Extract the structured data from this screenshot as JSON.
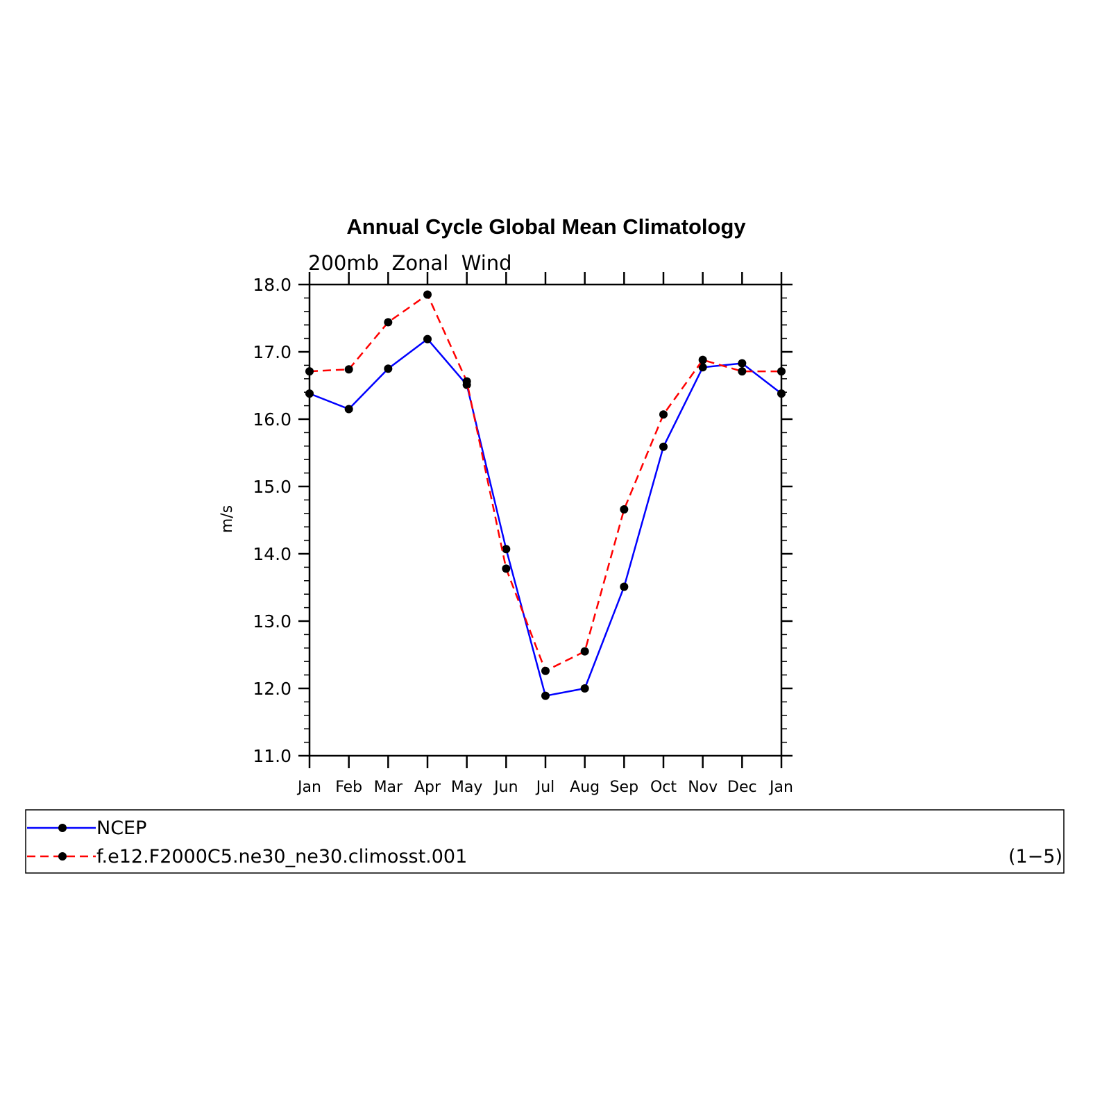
{
  "chart_data": {
    "type": "line",
    "title": "Annual Cycle Global Mean Climatology",
    "subtitle": "200mb  Zonal  Wind",
    "ylabel": "m/s",
    "xlabel": "",
    "categories": [
      "Jan",
      "Feb",
      "Mar",
      "Apr",
      "May",
      "Jun",
      "Jul",
      "Aug",
      "Sep",
      "Oct",
      "Nov",
      "Dec",
      "Jan"
    ],
    "ylim": [
      11.0,
      18.0
    ],
    "yticks": [
      "11.0",
      "12.0",
      "13.0",
      "14.0",
      "15.0",
      "16.0",
      "17.0",
      "18.0"
    ],
    "grid": false,
    "legend_position": "bottom",
    "series": [
      {
        "name": "NCEP",
        "color": "#0000ff",
        "style": "solid",
        "marker": "filled-circle",
        "values": [
          16.38,
          16.15,
          16.75,
          17.19,
          16.51,
          14.07,
          11.89,
          12.0,
          13.51,
          15.59,
          16.77,
          16.83,
          16.38
        ]
      },
      {
        "name": "f.e12.F2000C5.ne30_ne30.climosst.001",
        "color": "#ff0000",
        "style": "dashed",
        "marker": "filled-circle",
        "values": [
          16.71,
          16.74,
          17.44,
          17.85,
          16.56,
          13.78,
          12.26,
          12.55,
          14.66,
          16.07,
          16.88,
          16.71,
          16.71
        ]
      }
    ],
    "legend_note": "(1−5)"
  }
}
